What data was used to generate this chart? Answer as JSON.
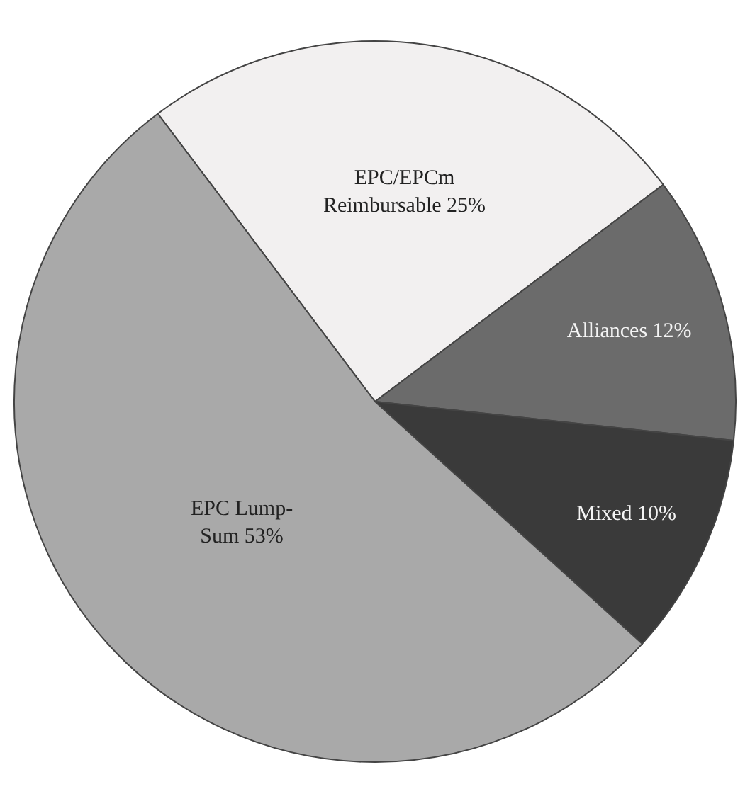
{
  "chart_data": {
    "type": "pie",
    "categories": [
      "EPC/EPCm\nReimbursable",
      "Alliances",
      "Mixed",
      "EPC Lump-\nSum"
    ],
    "values": [
      25,
      12,
      10,
      53
    ],
    "value_labels": [
      "25%",
      "12%",
      "10%",
      "53%"
    ],
    "colors": [
      "#f2f0f0",
      "#6b6b6b",
      "#3a3a3a",
      "#a9a9a9"
    ],
    "legend": false
  }
}
